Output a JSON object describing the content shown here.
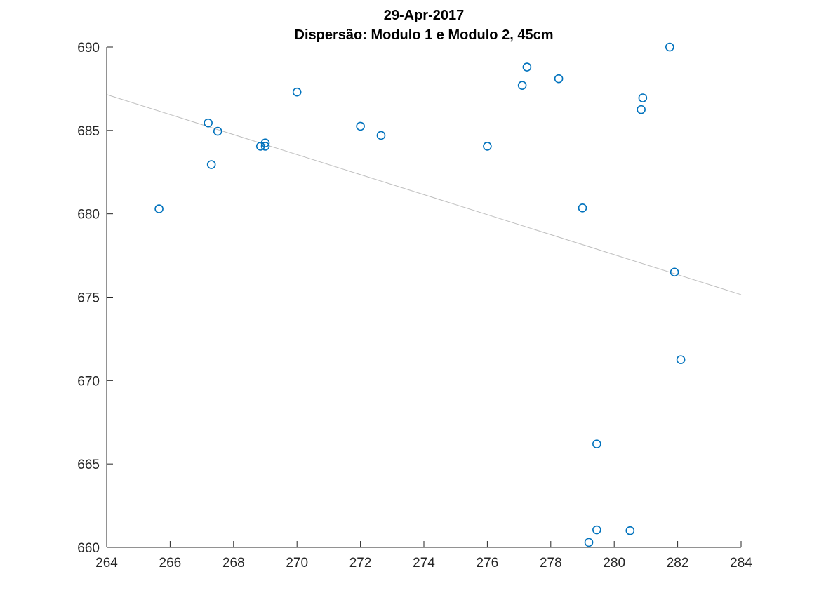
{
  "chart_data": {
    "type": "scatter",
    "title": "29-Apr-2017",
    "subtitle": "Dispersão: Modulo 1 e Modulo 2, 45cm",
    "xlabel": "",
    "ylabel": "",
    "xlim": [
      264,
      284
    ],
    "ylim": [
      660,
      690
    ],
    "xticks": [
      "264",
      "266",
      "268",
      "270",
      "272",
      "274",
      "276",
      "278",
      "280",
      "282",
      "284"
    ],
    "yticks": [
      "660",
      "665",
      "670",
      "675",
      "680",
      "685",
      "690"
    ],
    "grid": false,
    "legend": "none",
    "marker_color": "#0072BD",
    "fit_line_color": "#bfbfbf",
    "points": [
      {
        "x": 265.65,
        "y": 680.3
      },
      {
        "x": 267.2,
        "y": 685.45
      },
      {
        "x": 267.3,
        "y": 682.95
      },
      {
        "x": 267.5,
        "y": 684.95
      },
      {
        "x": 268.85,
        "y": 684.05
      },
      {
        "x": 269.0,
        "y": 684.05
      },
      {
        "x": 269.0,
        "y": 684.25
      },
      {
        "x": 270.0,
        "y": 687.3
      },
      {
        "x": 272.0,
        "y": 685.25
      },
      {
        "x": 272.65,
        "y": 684.7
      },
      {
        "x": 276.0,
        "y": 684.05
      },
      {
        "x": 277.1,
        "y": 687.7
      },
      {
        "x": 277.25,
        "y": 688.8
      },
      {
        "x": 278.25,
        "y": 688.1
      },
      {
        "x": 279.0,
        "y": 680.35
      },
      {
        "x": 279.2,
        "y": 660.3
      },
      {
        "x": 279.45,
        "y": 661.05
      },
      {
        "x": 279.45,
        "y": 666.2
      },
      {
        "x": 280.5,
        "y": 661.0
      },
      {
        "x": 280.85,
        "y": 686.25
      },
      {
        "x": 280.9,
        "y": 686.95
      },
      {
        "x": 281.75,
        "y": 690.0
      },
      {
        "x": 281.9,
        "y": 676.5
      },
      {
        "x": 282.1,
        "y": 671.25
      }
    ],
    "fit_line": {
      "x": [
        264,
        284
      ],
      "y": [
        687.15,
        675.15
      ]
    }
  }
}
